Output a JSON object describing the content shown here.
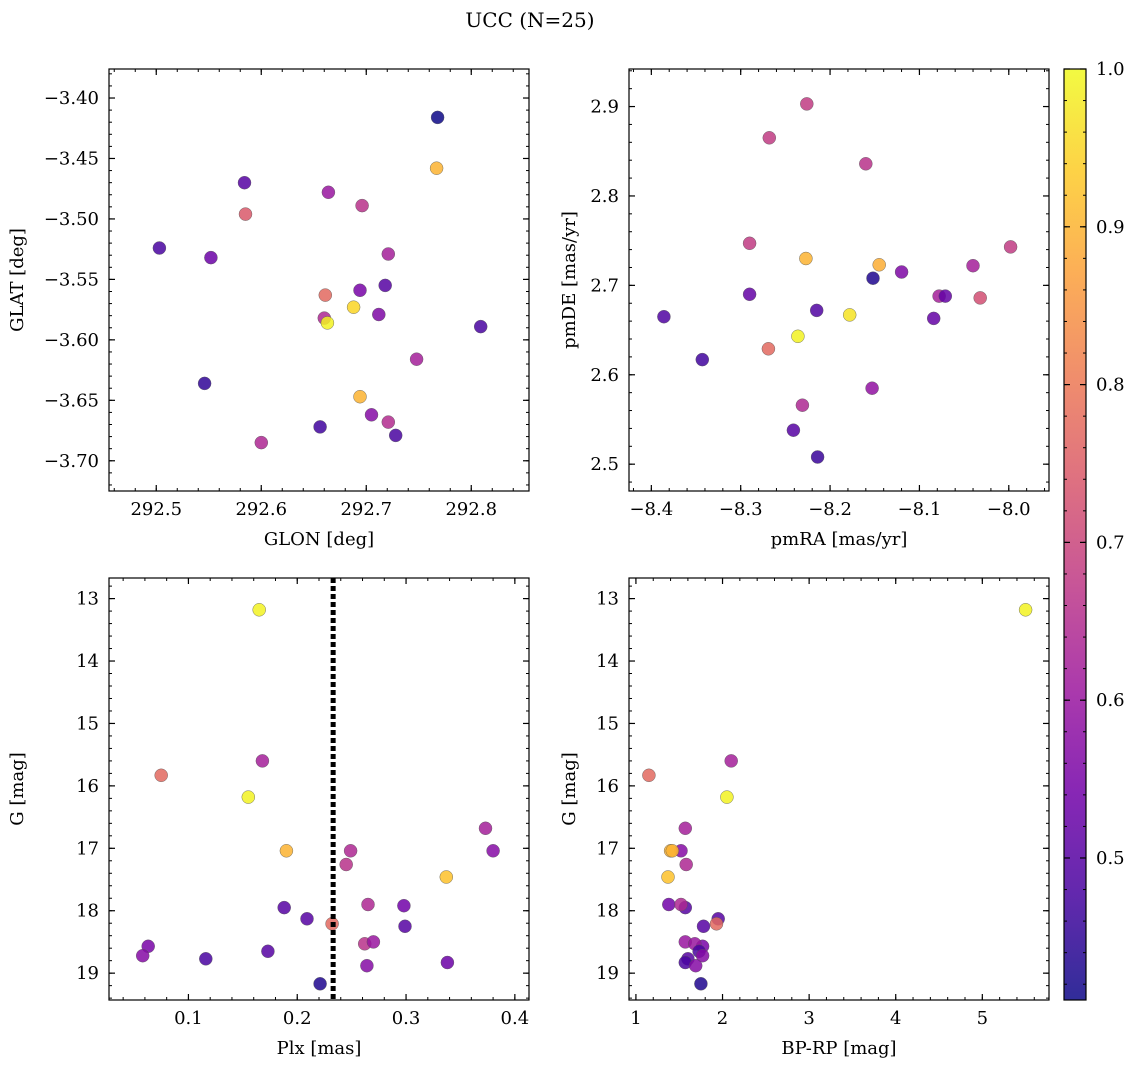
{
  "chart_data": {
    "title": "UCC (N=25)",
    "colorbar": {
      "colormap": "plasma",
      "range": [
        0.41,
        1.0
      ],
      "ticks": [
        0.5,
        0.6,
        0.7,
        0.8,
        0.9,
        1.0
      ],
      "tick_labels": [
        "0.5",
        "0.6",
        "0.7",
        "0.8",
        "0.9",
        "1.0"
      ],
      "colors": [
        "#0d0887",
        "#46039f",
        "#7201a8",
        "#9c179e",
        "#bd3786",
        "#d8576b",
        "#ed7953",
        "#fb9f3a",
        "#fdca26",
        "#f0f921"
      ]
    },
    "panels": [
      {
        "type": "scatter",
        "name": "sky",
        "xlabel": "GLON [deg]",
        "ylabel": "GLAT [deg]",
        "xlim": [
          292.455,
          292.855
        ],
        "ylim": [
          -3.725,
          -3.376
        ],
        "y_inverted": false,
        "xticks": [
          292.5,
          292.6,
          292.7,
          292.8
        ],
        "xtick_labels": [
          "292.5",
          "292.6",
          "292.7",
          "292.8"
        ],
        "yticks": [
          -3.4,
          -3.45,
          -3.5,
          -3.55,
          -3.6,
          -3.65,
          -3.7
        ],
        "ytick_labels": [
          "−3.40",
          "−3.45",
          "−3.50",
          "−3.55",
          "−3.60",
          "−3.65",
          "−3.70"
        ],
        "x": [
          292.768,
          292.767,
          292.584,
          292.664,
          292.696,
          292.585,
          292.503,
          292.721,
          292.552,
          292.661,
          292.718,
          292.694,
          292.66,
          292.663,
          292.688,
          292.809,
          292.712,
          292.748,
          292.546,
          292.694,
          292.705,
          292.721,
          292.656,
          292.728,
          292.6
        ],
        "y": [
          -3.416,
          -3.458,
          -3.47,
          -3.478,
          -3.489,
          -3.496,
          -3.524,
          -3.529,
          -3.532,
          -3.563,
          -3.555,
          -3.559,
          -3.582,
          -3.586,
          -3.573,
          -3.589,
          -3.579,
          -3.616,
          -3.636,
          -3.647,
          -3.662,
          -3.668,
          -3.672,
          -3.679,
          -3.685
        ],
        "c": [
          0.41,
          0.9,
          0.5,
          0.6,
          0.66,
          0.74,
          0.48,
          0.62,
          0.53,
          0.77,
          0.5,
          0.55,
          0.64,
          0.99,
          0.95,
          0.48,
          0.56,
          0.62,
          0.45,
          0.9,
          0.57,
          0.65,
          0.47,
          0.48,
          0.64
        ]
      },
      {
        "type": "scatter",
        "name": "proper-motion",
        "xlabel": "pmRA [mas/yr]",
        "ylabel": "pmDE [mas/yr]",
        "xlim": [
          -8.425,
          -7.955
        ],
        "ylim": [
          2.47,
          2.942
        ],
        "y_inverted": false,
        "xticks": [
          -8.4,
          -8.3,
          -8.2,
          -8.1,
          -8.0
        ],
        "xtick_labels": [
          "−8.4",
          "−8.3",
          "−8.2",
          "−8.1",
          "−8.0"
        ],
        "yticks": [
          2.5,
          2.6,
          2.7,
          2.8,
          2.9
        ],
        "ytick_labels": [
          "2.5",
          "2.6",
          "2.7",
          "2.8",
          "2.9"
        ],
        "x": [
          -8.226,
          -8.268,
          -8.16,
          -8.29,
          -8.227,
          -8.145,
          -7.998,
          -8.12,
          -8.04,
          -8.152,
          -8.215,
          -8.29,
          -8.078,
          -8.071,
          -8.032,
          -8.178,
          -8.386,
          -8.084,
          -8.236,
          -8.269,
          -8.343,
          -8.153,
          -8.231,
          -8.241,
          -8.214
        ],
        "y": [
          2.903,
          2.865,
          2.836,
          2.747,
          2.73,
          2.723,
          2.743,
          2.715,
          2.722,
          2.708,
          2.672,
          2.69,
          2.688,
          2.688,
          2.686,
          2.667,
          2.665,
          2.663,
          2.643,
          2.629,
          2.617,
          2.585,
          2.566,
          2.538,
          2.508
        ],
        "c": [
          0.68,
          0.68,
          0.66,
          0.68,
          0.9,
          0.89,
          0.68,
          0.56,
          0.62,
          0.43,
          0.49,
          0.52,
          0.62,
          0.52,
          0.72,
          0.97,
          0.49,
          0.52,
          0.99,
          0.77,
          0.47,
          0.59,
          0.64,
          0.5,
          0.46
        ]
      },
      {
        "type": "scatter",
        "name": "cmd-parallax",
        "xlabel": "Plx [mas]",
        "ylabel": "G [mag]",
        "xlim": [
          0.027,
          0.413
        ],
        "ylim": [
          12.67,
          19.43
        ],
        "y_inverted": true,
        "xticks": [
          0.1,
          0.2,
          0.3,
          0.4
        ],
        "xtick_labels": [
          "0.1",
          "0.2",
          "0.3",
          "0.4"
        ],
        "yticks": [
          13,
          14,
          15,
          16,
          17,
          18,
          19
        ],
        "ytick_labels": [
          "13",
          "14",
          "15",
          "16",
          "17",
          "18",
          "19"
        ],
        "vline": 0.233,
        "x": [
          0.165,
          0.168,
          0.075,
          0.155,
          0.373,
          0.38,
          0.19,
          0.249,
          0.245,
          0.337,
          0.188,
          0.209,
          0.265,
          0.298,
          0.232,
          0.299,
          0.262,
          0.27,
          0.173,
          0.063,
          0.058,
          0.264,
          0.338,
          0.116,
          0.221
        ],
        "y": [
          13.18,
          15.6,
          15.83,
          16.18,
          16.68,
          17.04,
          17.04,
          17.04,
          17.26,
          17.46,
          17.95,
          18.13,
          17.9,
          17.92,
          18.21,
          18.25,
          18.53,
          18.5,
          18.65,
          18.57,
          18.72,
          18.88,
          18.83,
          18.77,
          19.17
        ],
        "c": [
          0.99,
          0.62,
          0.77,
          0.99,
          0.62,
          0.57,
          0.9,
          0.64,
          0.66,
          0.92,
          0.5,
          0.5,
          0.64,
          0.54,
          0.77,
          0.5,
          0.66,
          0.6,
          0.5,
          0.55,
          0.57,
          0.57,
          0.53,
          0.48,
          0.43
        ]
      },
      {
        "type": "scatter",
        "name": "cmd-color",
        "xlabel": "BP-RP [mag]",
        "ylabel": "G [mag]",
        "xlim": [
          0.92,
          5.77
        ],
        "ylim": [
          12.67,
          19.43
        ],
        "y_inverted": true,
        "xticks": [
          1,
          2,
          3,
          4,
          5
        ],
        "xtick_labels": [
          "1",
          "2",
          "3",
          "4",
          "5"
        ],
        "yticks": [
          13,
          14,
          15,
          16,
          17,
          18,
          19
        ],
        "ytick_labels": [
          "13",
          "14",
          "15",
          "16",
          "17",
          "18",
          "19"
        ],
        "x": [
          5.5,
          2.1,
          1.15,
          2.05,
          1.57,
          1.52,
          1.4,
          1.42,
          1.58,
          1.37,
          1.38,
          1.57,
          1.52,
          1.95,
          1.78,
          1.93,
          1.57,
          1.77,
          1.68,
          1.73,
          1.6,
          1.57,
          1.77,
          1.69,
          1.75
        ],
        "y": [
          13.18,
          15.6,
          15.83,
          16.18,
          16.68,
          17.04,
          17.04,
          17.04,
          17.26,
          17.46,
          17.9,
          17.95,
          17.9,
          18.13,
          18.25,
          18.21,
          18.5,
          18.57,
          18.53,
          18.65,
          18.77,
          18.83,
          18.72,
          18.88,
          19.17
        ],
        "c": [
          0.99,
          0.62,
          0.77,
          0.99,
          0.62,
          0.57,
          0.9,
          0.9,
          0.64,
          0.92,
          0.54,
          0.5,
          0.64,
          0.5,
          0.5,
          0.77,
          0.6,
          0.55,
          0.6,
          0.48,
          0.5,
          0.48,
          0.57,
          0.57,
          0.43
        ]
      }
    ]
  }
}
